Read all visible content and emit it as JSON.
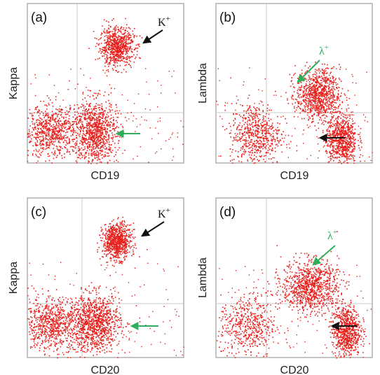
{
  "colors": {
    "dots": "#e8211c",
    "black_arrow": "#111111",
    "green_arrow": "#2fae5a",
    "frame": "#888888",
    "quadrant": "#c8c8c8"
  },
  "chart_data": [
    {
      "type": "scatter",
      "panel": "(a)",
      "xlabel": "CD19",
      "ylabel": "Kappa",
      "grid": "quadrant lines",
      "xlim": [
        0,
        1
      ],
      "ylim": [
        0,
        1
      ],
      "quadrant": {
        "x": 0.32,
        "y": 0.37
      },
      "clusters": [
        {
          "cx": 0.57,
          "cy": 0.73,
          "sx": 0.055,
          "sy": 0.06,
          "count": 750
        },
        {
          "cx": 0.15,
          "cy": 0.2,
          "sx": 0.09,
          "sy": 0.08,
          "count": 700
        },
        {
          "cx": 0.43,
          "cy": 0.2,
          "sx": 0.07,
          "sy": 0.1,
          "count": 950
        }
      ],
      "annotations": [
        {
          "text": "K",
          "sup": "+",
          "color": "black"
        },
        {
          "text": "",
          "sup": "",
          "color": "green"
        }
      ]
    },
    {
      "type": "scatter",
      "panel": "(b)",
      "xlabel": "CD19",
      "ylabel": "Lambda",
      "grid": "quadrant lines",
      "xlim": [
        0,
        1
      ],
      "ylim": [
        0,
        1
      ],
      "quadrant": {
        "x": 0.32,
        "y": 0.37
      },
      "clusters": [
        {
          "cx": 0.65,
          "cy": 0.43,
          "sx": 0.07,
          "sy": 0.08,
          "count": 900
        },
        {
          "cx": 0.25,
          "cy": 0.18,
          "sx": 0.08,
          "sy": 0.1,
          "count": 600
        },
        {
          "cx": 0.8,
          "cy": 0.15,
          "sx": 0.05,
          "sy": 0.08,
          "count": 750
        }
      ],
      "annotations": [
        {
          "text": "λ",
          "sup": "+",
          "color": "green"
        },
        {
          "text": "",
          "sup": "",
          "color": "black"
        }
      ]
    },
    {
      "type": "scatter",
      "panel": "(c)",
      "xlabel": "CD20",
      "ylabel": "Kappa",
      "grid": "quadrant lines",
      "xlim": [
        0,
        1
      ],
      "ylim": [
        0,
        1
      ],
      "quadrant": {
        "x": 0.32,
        "y": 0.37
      },
      "clusters": [
        {
          "cx": 0.57,
          "cy": 0.73,
          "sx": 0.045,
          "sy": 0.055,
          "count": 800
        },
        {
          "cx": 0.15,
          "cy": 0.21,
          "sx": 0.1,
          "sy": 0.08,
          "count": 750
        },
        {
          "cx": 0.43,
          "cy": 0.22,
          "sx": 0.08,
          "sy": 0.09,
          "count": 1000
        }
      ],
      "annotations": [
        {
          "text": "K",
          "sup": "+",
          "color": "black"
        },
        {
          "text": "",
          "sup": "",
          "color": "green"
        }
      ]
    },
    {
      "type": "scatter",
      "panel": "(d)",
      "xlabel": "CD20",
      "ylabel": "Lambda",
      "grid": "quadrant lines",
      "xlim": [
        0,
        1
      ],
      "ylim": [
        0,
        1
      ],
      "quadrant": {
        "x": 0.32,
        "y": 0.37
      },
      "clusters": [
        {
          "cx": 0.6,
          "cy": 0.45,
          "sx": 0.09,
          "sy": 0.08,
          "count": 950
        },
        {
          "cx": 0.2,
          "cy": 0.2,
          "sx": 0.09,
          "sy": 0.1,
          "count": 500
        },
        {
          "cx": 0.83,
          "cy": 0.17,
          "sx": 0.045,
          "sy": 0.08,
          "count": 750
        }
      ],
      "annotations": [
        {
          "text": "λ",
          "sup": "+",
          "color": "green"
        },
        {
          "text": "",
          "sup": "",
          "color": "black"
        }
      ]
    }
  ]
}
